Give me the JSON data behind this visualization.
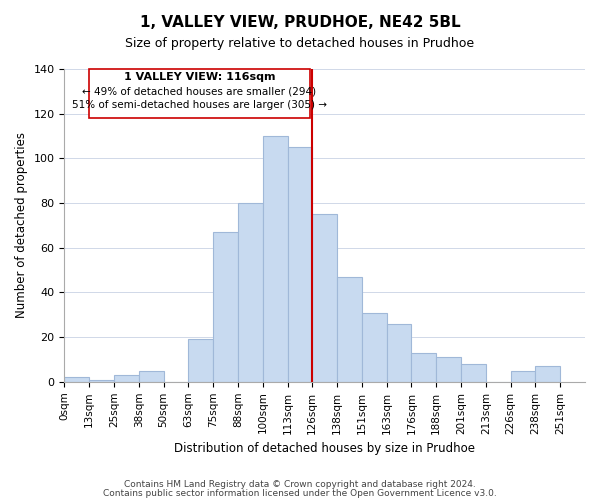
{
  "title": "1, VALLEY VIEW, PRUDHOE, NE42 5BL",
  "subtitle": "Size of property relative to detached houses in Prudhoe",
  "xlabel": "Distribution of detached houses by size in Prudhoe",
  "ylabel": "Number of detached properties",
  "bin_labels": [
    "0sqm",
    "13sqm",
    "25sqm",
    "38sqm",
    "50sqm",
    "63sqm",
    "75sqm",
    "88sqm",
    "100sqm",
    "113sqm",
    "126sqm",
    "138sqm",
    "151sqm",
    "163sqm",
    "176sqm",
    "188sqm",
    "201sqm",
    "213sqm",
    "226sqm",
    "238sqm",
    "251sqm"
  ],
  "bar_heights": [
    2,
    1,
    3,
    5,
    0,
    19,
    67,
    80,
    110,
    105,
    75,
    47,
    31,
    26,
    13,
    11,
    8,
    0,
    5,
    7
  ],
  "bar_color": "#c8daf0",
  "bar_edge_color": "#a0b8d8",
  "marker_line_color": "#cc0000",
  "annotation_title": "1 VALLEY VIEW: 116sqm",
  "annotation_line1": "← 49% of detached houses are smaller (294)",
  "annotation_line2": "51% of semi-detached houses are larger (305) →",
  "annotation_box_color": "#ffffff",
  "annotation_box_edge": "#cc0000",
  "ylim": [
    0,
    140
  ],
  "yticks": [
    0,
    20,
    40,
    60,
    80,
    100,
    120,
    140
  ],
  "footer1": "Contains HM Land Registry data © Crown copyright and database right 2024.",
  "footer2": "Contains public sector information licensed under the Open Government Licence v3.0.",
  "bg_color": "#ffffff",
  "grid_color": "#d0d8e8"
}
